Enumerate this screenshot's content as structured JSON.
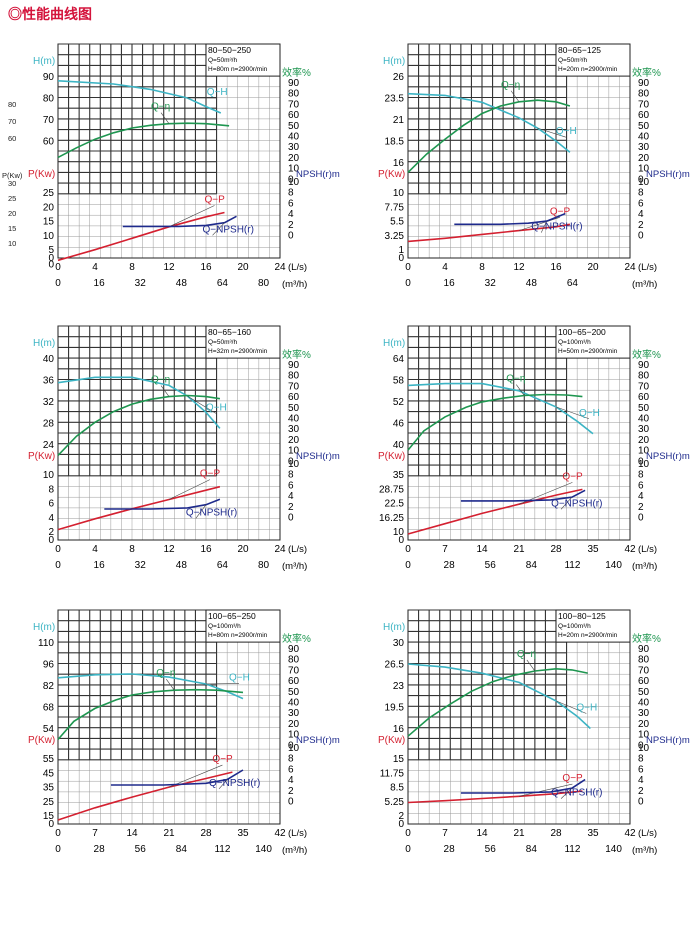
{
  "page": {
    "title": "◎性能曲线图",
    "stray_labels": [
      "80",
      "70",
      "60",
      "P(Kw)",
      "30",
      "25",
      "20",
      "15",
      "10"
    ]
  },
  "labels": {
    "head": "H(m)",
    "eff": "效率%",
    "power": "P(Kw)",
    "npsh": "NPSH(r)m",
    "ls": "(L/s)",
    "m3h": "(m³/h)",
    "qh": "Q−H",
    "qeta": "Q−η",
    "qp": "Q−P",
    "qnpsh": "Q−NPSH(r)"
  },
  "colors": {
    "qh": "#3cb4c4",
    "qeta": "#1e9650",
    "qp": "#d42030",
    "qnpsh": "#1e2a8c",
    "grid": "#999999",
    "eff_label": "#1e9650",
    "power_label": "#d42030",
    "head_label": "#3cb4c4",
    "npsh_label": "#1e2a8c"
  },
  "chart_data": [
    {
      "type": "line",
      "title": "80−50−250",
      "specs": [
        "Q=50m³/h",
        "H=80m n=2900r/min"
      ],
      "ls_ticks": [
        "0",
        "4",
        "8",
        "12",
        "16",
        "20",
        "24"
      ],
      "m3h_ticks": [
        "0",
        "16",
        "32",
        "48",
        "64",
        "80"
      ],
      "head_ticks": [
        "90",
        "80",
        "70",
        "60"
      ],
      "power_ticks": [
        "25",
        "20",
        "15",
        "10",
        "5",
        "0"
      ],
      "eff_ticks": [
        "90",
        "80",
        "70",
        "60",
        "50",
        "40",
        "30",
        "20",
        "10",
        "0"
      ],
      "npsh_ticks": [
        "10",
        "8",
        "6",
        "4",
        "2",
        "0"
      ],
      "curves": {
        "qh": [
          [
            0,
            88
          ],
          [
            6,
            86.5
          ],
          [
            10,
            84
          ],
          [
            14,
            80
          ],
          [
            16,
            76
          ],
          [
            17.6,
            73
          ]
        ],
        "qeta": [
          [
            0,
            20
          ],
          [
            2,
            29
          ],
          [
            4,
            37
          ],
          [
            6,
            43
          ],
          [
            8,
            47.5
          ],
          [
            10,
            50
          ],
          [
            12,
            51.5
          ],
          [
            14,
            52
          ],
          [
            16,
            51.5
          ],
          [
            18.5,
            49.5
          ]
        ],
        "qp": [
          [
            0,
            1.3
          ],
          [
            4,
            5
          ],
          [
            8,
            9
          ],
          [
            12,
            13
          ],
          [
            16,
            16.5
          ],
          [
            18,
            18
          ]
        ],
        "qnpsh": [
          [
            7,
            1.6
          ],
          [
            13,
            1.6
          ],
          [
            16,
            1.8
          ],
          [
            18,
            2.3
          ],
          [
            19.3,
            3.5
          ]
        ]
      }
    },
    {
      "type": "line",
      "title": "80−65−125",
      "specs": [
        "Q=50m³/h",
        "H=20m n=2900r/min"
      ],
      "ls_ticks": [
        "0",
        "4",
        "8",
        "12",
        "16",
        "20",
        "24"
      ],
      "m3h_ticks": [
        "0",
        "16",
        "32",
        "48",
        "64"
      ],
      "head_ticks": [
        "26",
        "23.5",
        "21",
        "18.5",
        "16"
      ],
      "power_ticks": [
        "10",
        "7.75",
        "5.5",
        "3.25",
        "1"
      ],
      "eff_ticks": [
        "90",
        "80",
        "70",
        "60",
        "50",
        "40",
        "30",
        "20",
        "10",
        "0"
      ],
      "npsh_ticks": [
        "10",
        "8",
        "6",
        "4",
        "2",
        "0"
      ],
      "curves": {
        "qh": [
          [
            0,
            24
          ],
          [
            4,
            23.8
          ],
          [
            8,
            23
          ],
          [
            12,
            21.2
          ],
          [
            14,
            20
          ],
          [
            16,
            18.5
          ],
          [
            17.5,
            17.2
          ]
        ],
        "qeta": [
          [
            0,
            6
          ],
          [
            2,
            23
          ],
          [
            4,
            37
          ],
          [
            6,
            50
          ],
          [
            8,
            61
          ],
          [
            10,
            68
          ],
          [
            12,
            72
          ],
          [
            14,
            73.5
          ],
          [
            16,
            72
          ],
          [
            17.5,
            68
          ]
        ],
        "qp": [
          [
            0,
            2.3
          ],
          [
            4,
            2.8
          ],
          [
            8,
            3.4
          ],
          [
            12,
            4
          ],
          [
            16,
            4.6
          ],
          [
            17.5,
            5
          ]
        ],
        "qnpsh": [
          [
            5,
            2
          ],
          [
            10,
            2
          ],
          [
            13,
            2.2
          ],
          [
            15,
            2.6
          ],
          [
            17,
            4
          ]
        ]
      }
    },
    {
      "type": "line",
      "title": "80−65−160",
      "specs": [
        "Q=50m³/h",
        "H=32m n=2900r/min"
      ],
      "ls_ticks": [
        "0",
        "4",
        "8",
        "12",
        "16",
        "20",
        "24"
      ],
      "m3h_ticks": [
        "0",
        "16",
        "32",
        "48",
        "64",
        "80"
      ],
      "head_ticks": [
        "40",
        "36",
        "32",
        "28",
        "24"
      ],
      "power_ticks": [
        "10",
        "8",
        "6",
        "4",
        "2"
      ],
      "eff_ticks": [
        "90",
        "80",
        "70",
        "60",
        "50",
        "40",
        "30",
        "20",
        "10",
        "0"
      ],
      "npsh_ticks": [
        "10",
        "8",
        "6",
        "4",
        "2",
        "0"
      ],
      "curves": {
        "qh": [
          [
            0,
            35.5
          ],
          [
            4,
            36.5
          ],
          [
            8,
            36.5
          ],
          [
            12,
            35
          ],
          [
            14,
            33
          ],
          [
            16,
            30
          ],
          [
            17.5,
            27
          ]
        ],
        "qeta": [
          [
            0,
            5
          ],
          [
            2,
            23
          ],
          [
            4,
            36
          ],
          [
            6,
            46
          ],
          [
            8,
            53
          ],
          [
            10,
            57.5
          ],
          [
            12,
            60
          ],
          [
            14,
            61
          ],
          [
            16,
            60
          ],
          [
            17.5,
            58
          ]
        ],
        "qp": [
          [
            0,
            2.3
          ],
          [
            4,
            3.8
          ],
          [
            8,
            5.2
          ],
          [
            12,
            6.5
          ],
          [
            16,
            7.8
          ],
          [
            17.5,
            8.3
          ]
        ],
        "qnpsh": [
          [
            5,
            1.5
          ],
          [
            10,
            1.5
          ],
          [
            14,
            1.7
          ],
          [
            16,
            2.3
          ],
          [
            17.5,
            3.3
          ]
        ]
      }
    },
    {
      "type": "line",
      "title": "100−65−200",
      "specs": [
        "Q=100m³/h",
        "H=50m n=2900r/min"
      ],
      "ls_ticks": [
        "0",
        "7",
        "14",
        "21",
        "28",
        "35",
        "42"
      ],
      "m3h_ticks": [
        "0",
        "28",
        "56",
        "84",
        "112",
        "140"
      ],
      "head_ticks": [
        "64",
        "58",
        "52",
        "46",
        "40"
      ],
      "power_ticks": [
        "35",
        "28.75",
        "22.5",
        "16.25",
        "10"
      ],
      "eff_ticks": [
        "90",
        "80",
        "70",
        "60",
        "50",
        "40",
        "30",
        "20",
        "10",
        "0"
      ],
      "npsh_ticks": [
        "10",
        "8",
        "6",
        "4",
        "2",
        "0"
      ],
      "curves": {
        "qh": [
          [
            0,
            56.5
          ],
          [
            7,
            57
          ],
          [
            14,
            57
          ],
          [
            21,
            55
          ],
          [
            28,
            50.5
          ],
          [
            32,
            46.5
          ],
          [
            35,
            43
          ]
        ],
        "qeta": [
          [
            0,
            10
          ],
          [
            3,
            28
          ],
          [
            7,
            41
          ],
          [
            11,
            50
          ],
          [
            14,
            55
          ],
          [
            18,
            58.5
          ],
          [
            22,
            61
          ],
          [
            26,
            62
          ],
          [
            30,
            61.5
          ],
          [
            33,
            60
          ]
        ],
        "qp": [
          [
            0,
            9
          ],
          [
            7,
            13.5
          ],
          [
            14,
            18
          ],
          [
            21,
            22
          ],
          [
            28,
            26
          ],
          [
            33,
            28.5
          ]
        ],
        "qnpsh": [
          [
            10,
            3
          ],
          [
            20,
            3
          ],
          [
            27,
            3.2
          ],
          [
            31,
            3.7
          ],
          [
            33.5,
            5
          ]
        ]
      }
    },
    {
      "type": "line",
      "title": "100−65−250",
      "specs": [
        "Q=100m³/h",
        "H=80m n=2900r/min"
      ],
      "ls_ticks": [
        "0",
        "7",
        "14",
        "21",
        "28",
        "35",
        "42"
      ],
      "m3h_ticks": [
        "0",
        "28",
        "56",
        "84",
        "112",
        "140"
      ],
      "head_ticks": [
        "110",
        "96",
        "82",
        "68",
        "54"
      ],
      "power_ticks": [
        "55",
        "45",
        "35",
        "25",
        "15"
      ],
      "eff_ticks": [
        "90",
        "80",
        "70",
        "60",
        "50",
        "40",
        "30",
        "20",
        "10",
        "0"
      ],
      "npsh_ticks": [
        "10",
        "8",
        "6",
        "4",
        "2",
        "0"
      ],
      "curves": {
        "qh": [
          [
            0,
            87
          ],
          [
            7,
            89
          ],
          [
            14,
            89.5
          ],
          [
            21,
            87.5
          ],
          [
            28,
            83
          ],
          [
            32,
            78
          ],
          [
            35,
            73.5
          ]
        ],
        "qeta": [
          [
            0,
            5
          ],
          [
            3,
            22
          ],
          [
            7,
            34
          ],
          [
            11,
            42
          ],
          [
            14,
            46.5
          ],
          [
            18,
            49.5
          ],
          [
            22,
            51
          ],
          [
            26,
            51.5
          ],
          [
            30,
            51
          ],
          [
            35,
            49
          ]
        ],
        "qp": [
          [
            0,
            12
          ],
          [
            7,
            20.5
          ],
          [
            14,
            28
          ],
          [
            21,
            35
          ],
          [
            28,
            41
          ],
          [
            33,
            45.5
          ]
        ],
        "qnpsh": [
          [
            10,
            3
          ],
          [
            20,
            3
          ],
          [
            28,
            3.3
          ],
          [
            32,
            4
          ],
          [
            35,
            5.8
          ]
        ]
      }
    },
    {
      "type": "line",
      "title": "100−80−125",
      "specs": [
        "Q=100m³/h",
        "H=20m n=2900r/min"
      ],
      "ls_ticks": [
        "0",
        "7",
        "14",
        "21",
        "28",
        "35",
        "42"
      ],
      "m3h_ticks": [
        "0",
        "28",
        "56",
        "84",
        "112",
        "140"
      ],
      "head_ticks": [
        "30",
        "26.5",
        "23",
        "19.5",
        "16"
      ],
      "power_ticks": [
        "15",
        "11.75",
        "8.5",
        "5.25",
        "2"
      ],
      "eff_ticks": [
        "90",
        "80",
        "70",
        "60",
        "50",
        "40",
        "30",
        "20",
        "10",
        "0"
      ],
      "npsh_ticks": [
        "10",
        "8",
        "6",
        "4",
        "2",
        "0"
      ],
      "curves": {
        "qh": [
          [
            0,
            26.5
          ],
          [
            7,
            26
          ],
          [
            14,
            25
          ],
          [
            21,
            23.5
          ],
          [
            28,
            20.5
          ],
          [
            32,
            18
          ],
          [
            34.5,
            16
          ]
        ],
        "qeta": [
          [
            0,
            8
          ],
          [
            4,
            25
          ],
          [
            8,
            38
          ],
          [
            12,
            50
          ],
          [
            16,
            59
          ],
          [
            20,
            65
          ],
          [
            24,
            69
          ],
          [
            28,
            71
          ],
          [
            31,
            70
          ],
          [
            34,
            67
          ]
        ],
        "qp": [
          [
            0,
            5
          ],
          [
            7,
            5.4
          ],
          [
            14,
            5.9
          ],
          [
            21,
            6.4
          ],
          [
            28,
            7
          ],
          [
            33,
            7.6
          ]
        ],
        "qnpsh": [
          [
            10,
            1.5
          ],
          [
            20,
            1.5
          ],
          [
            27,
            1.7
          ],
          [
            31,
            2.4
          ],
          [
            33.5,
            4
          ]
        ]
      }
    }
  ]
}
